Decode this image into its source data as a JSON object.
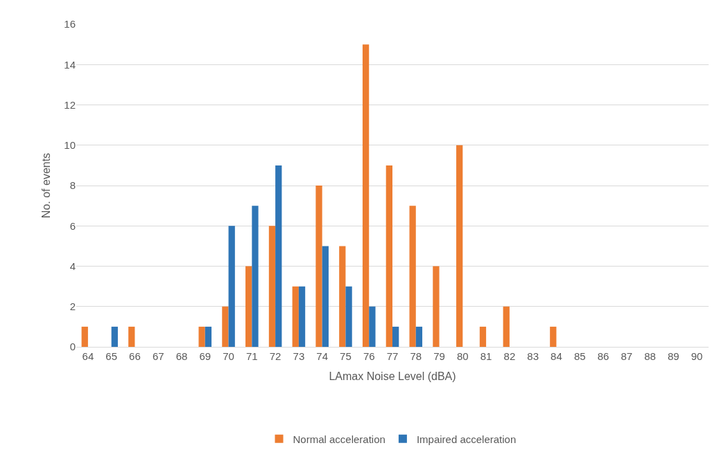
{
  "chart_data": {
    "type": "bar",
    "xlabel": "LAmax Noise Level (dBA)",
    "ylabel": "No. of events",
    "categories": [
      "64",
      "65",
      "66",
      "67",
      "68",
      "69",
      "70",
      "71",
      "72",
      "73",
      "74",
      "75",
      "76",
      "77",
      "78",
      "79",
      "80",
      "81",
      "82",
      "83",
      "84",
      "85",
      "86",
      "87",
      "88",
      "89",
      "90"
    ],
    "series": [
      {
        "name": "Normal acceleration",
        "color": "#ed7d31",
        "values": [
          1,
          0,
          1,
          0,
          0,
          1,
          2,
          4,
          6,
          3,
          8,
          5,
          15,
          9,
          7,
          4,
          10,
          1,
          2,
          0,
          1,
          0,
          0,
          0,
          0,
          0,
          0
        ]
      },
      {
        "name": "Impaired acceleration",
        "color": "#2e75b6",
        "values": [
          0,
          1,
          0,
          0,
          0,
          1,
          6,
          7,
          9,
          3,
          5,
          3,
          2,
          1,
          1,
          0,
          0,
          0,
          0,
          0,
          0,
          0,
          0,
          0,
          0,
          0,
          0
        ]
      }
    ],
    "ylim": [
      0,
      16
    ],
    "yticks": [
      0,
      2,
      4,
      6,
      8,
      10,
      12,
      14,
      16
    ],
    "grid": "y",
    "legend": "bottom"
  }
}
